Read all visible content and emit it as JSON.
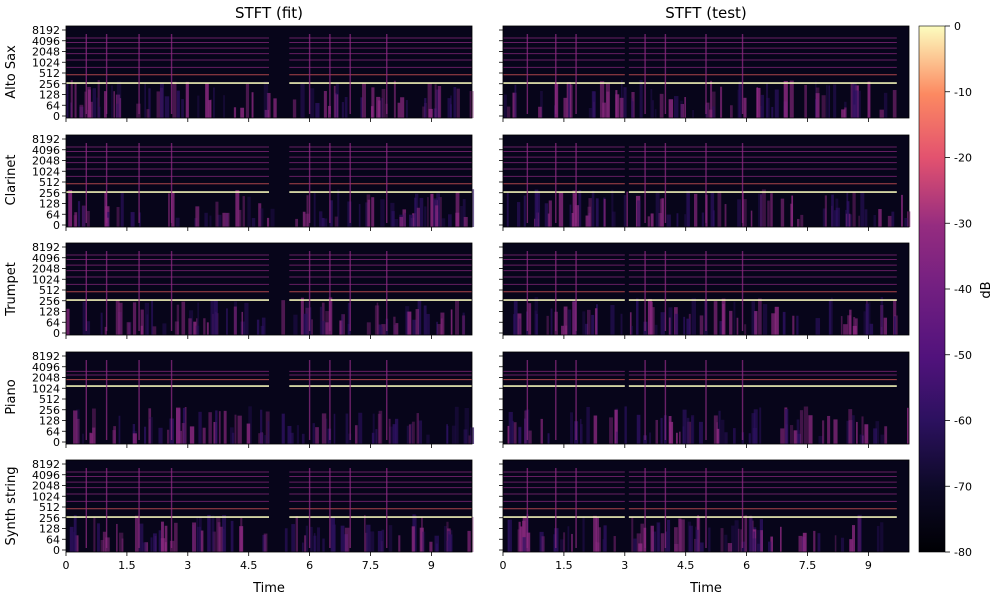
{
  "chart_data": {
    "type": "heatmap",
    "column_titles": [
      "STFT (fit)",
      "STFT (test)"
    ],
    "row_labels": [
      "Alto Sax",
      "Clarinet",
      "Trumpet",
      "Piano",
      "Synth string"
    ],
    "xlabel": "Time",
    "x_ticks": [
      "0",
      "1.5",
      "3",
      "4.5",
      "6",
      "7.5",
      "9"
    ],
    "xlim": [
      0,
      10
    ],
    "y_ticks": [
      "0",
      "64",
      "128",
      "256",
      "512",
      "1024",
      "2048",
      "4096",
      "8192"
    ],
    "colorbar": {
      "label": "dB",
      "ticks": [
        "0",
        "-10",
        "-20",
        "-30",
        "-40",
        "-50",
        "-60",
        "-70",
        "-80"
      ],
      "range": [
        -80,
        0
      ],
      "colormap": "magma"
    },
    "notes_fit": [
      {
        "start": 0.0,
        "end": 5.0,
        "decays": [
          0.5,
          1.0,
          1.8,
          2.6
        ]
      },
      {
        "start": 5.5,
        "end": 10.0,
        "decays": [
          6.0,
          6.5,
          7.0,
          7.9
        ]
      }
    ],
    "notes_test": [
      {
        "start": 0.0,
        "end": 3.0,
        "decays": [
          0.6,
          1.3,
          1.8
        ]
      },
      {
        "start": 3.1,
        "end": 9.7,
        "decays": [
          3.5,
          4.0,
          5.0,
          5.9
        ]
      }
    ],
    "colors": {
      "background": "#07051a",
      "low": "#2c115f",
      "mid": "#8c2981",
      "high": "#f0605d",
      "peak": "#fcfdbf"
    }
  }
}
